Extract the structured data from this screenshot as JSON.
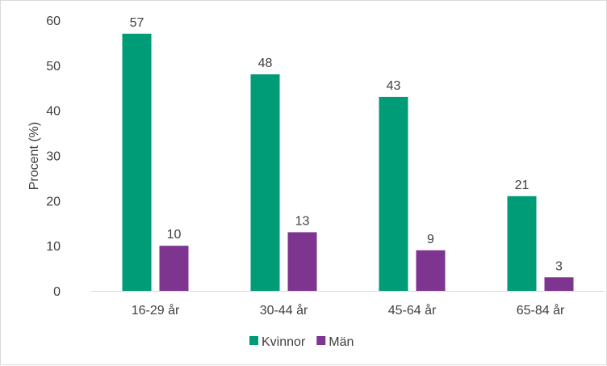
{
  "chart_data": {
    "type": "bar",
    "title": "",
    "xlabel": "",
    "ylabel": "Procent (%)",
    "categories": [
      "16-29 år",
      "30-44 år",
      "45-64 år",
      "65-84 år"
    ],
    "series": [
      {
        "name": "Kvinnor",
        "color": "#009b77",
        "values": [
          57,
          48,
          43,
          21
        ]
      },
      {
        "name": "Män",
        "color": "#7d3590",
        "values": [
          10,
          13,
          9,
          3
        ]
      }
    ],
    "ylim": [
      0,
      60
    ],
    "yticks": [
      0,
      10,
      20,
      30,
      40,
      50,
      60
    ],
    "grid": false,
    "legend": "bottom",
    "data_labels": true
  }
}
